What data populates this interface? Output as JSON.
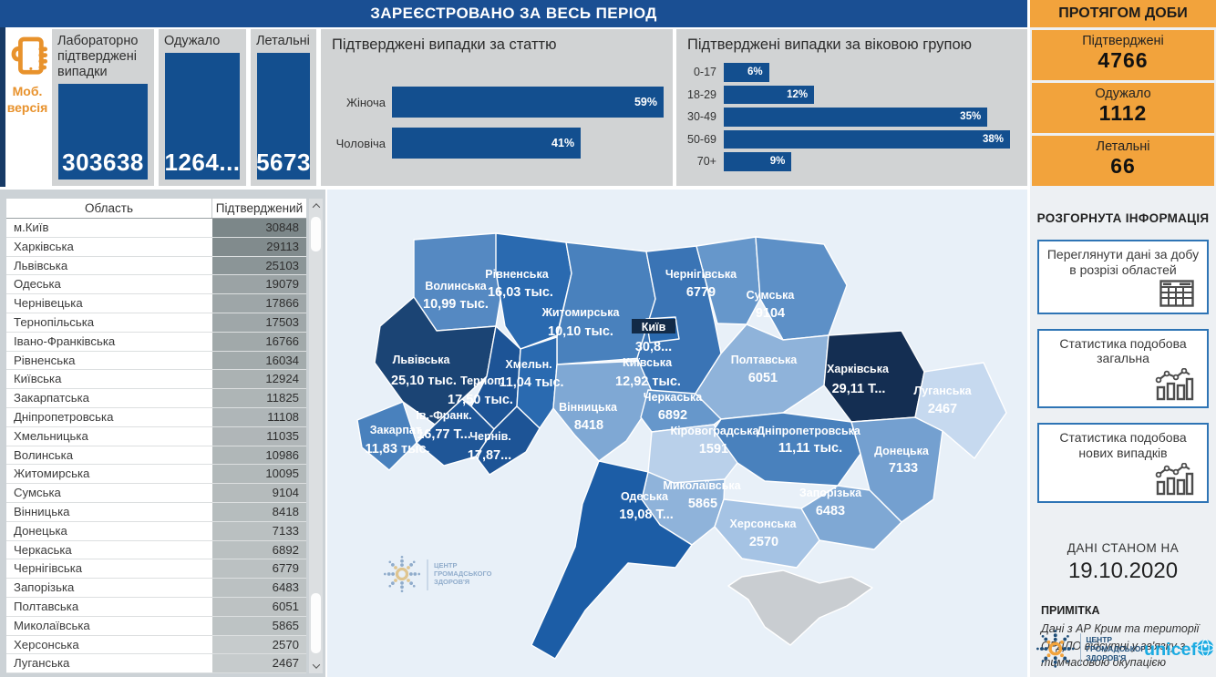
{
  "top": {
    "period_title": "ЗАРЕЄСТРОВАНО ЗА ВЕСЬ ПЕРІОД",
    "daily_title": "ПРОТЯГОМ ДОБИ"
  },
  "mobile_version_label": "Моб. версія",
  "summary_cards": [
    {
      "label": "Лабораторно підтверджені випадки",
      "value": "303638"
    },
    {
      "label": "Одужало",
      "value": "1264..."
    },
    {
      "label": "Летальні",
      "value": "5673"
    }
  ],
  "daily_cards": [
    {
      "label": "Підтверджені",
      "value": "4766"
    },
    {
      "label": "Одужало",
      "value": "1112"
    },
    {
      "label": "Летальні",
      "value": "66"
    }
  ],
  "chart_data": [
    {
      "type": "bar",
      "orientation": "horizontal",
      "title": "Підтверджені випадки за статтю",
      "categories": [
        "Жіноча",
        "Чоловіча"
      ],
      "values": [
        59,
        41
      ],
      "unit": "%",
      "xlim": [
        0,
        59
      ],
      "grid": false,
      "bar_color": "#134f8f"
    },
    {
      "type": "bar",
      "orientation": "horizontal",
      "title": "Підтверджені випадки за віковою групою",
      "categories": [
        "0-17",
        "18-29",
        "30-49",
        "50-69",
        "70+"
      ],
      "values": [
        6,
        12,
        35,
        38,
        9
      ],
      "unit": "%",
      "xlim": [
        0,
        38
      ],
      "grid": false,
      "bar_color": "#134f8f"
    }
  ],
  "table": {
    "headers": [
      "Область",
      "Підтверджений"
    ],
    "rows": [
      [
        "м.Київ",
        30848
      ],
      [
        "Харківська",
        29113
      ],
      [
        "Львівська",
        25103
      ],
      [
        "Одеська",
        19079
      ],
      [
        "Чернівецька",
        17866
      ],
      [
        "Тернопільська",
        17503
      ],
      [
        "Івано-Франківська",
        16766
      ],
      [
        "Рівненська",
        16034
      ],
      [
        "Київська",
        12924
      ],
      [
        "Закарпатська",
        11825
      ],
      [
        "Дніпропетровська",
        11108
      ],
      [
        "Хмельницька",
        11035
      ],
      [
        "Волинська",
        10986
      ],
      [
        "Житомирська",
        10095
      ],
      [
        "Сумська",
        9104
      ],
      [
        "Вінницька",
        8418
      ],
      [
        "Донецька",
        7133
      ],
      [
        "Черкаська",
        6892
      ],
      [
        "Чернігівська",
        6779
      ],
      [
        "Запорізька",
        6483
      ],
      [
        "Полтавська",
        6051
      ],
      [
        "Миколаївська",
        5865
      ],
      [
        "Херсонська",
        2570
      ],
      [
        "Луганська",
        2467
      ]
    ]
  },
  "map": {
    "background": "#e8f0f8",
    "crimea_color": "#c9cdd1",
    "kyiv_label_box_color": "#122a47",
    "regions": [
      {
        "id": "volyn",
        "name": "Волинська",
        "value": "10,99 тыс.",
        "color": "#5589c2"
      },
      {
        "id": "rivne",
        "name": "Рівненська",
        "value": "16,03 тыс.",
        "color": "#2a6ab0"
      },
      {
        "id": "zhytomyr",
        "name": "Житомирська",
        "value": "10,10 тыс.",
        "color": "#4981bd"
      },
      {
        "id": "lviv",
        "name": "Львівська",
        "value": "25,10 тыс.",
        "color": "#1b4474"
      },
      {
        "id": "ternopil",
        "name": "Терноп.",
        "value": "17,50 тыс.",
        "color": "#1d5496"
      },
      {
        "id": "khmelnytska",
        "name": "Хмельн.",
        "value": "11,04 тыс.",
        "color": "#2a6ab0"
      },
      {
        "id": "ivano_frankivska",
        "name": "Ів.-Франк.",
        "value": "16,77 Т...",
        "color": "#1f5697"
      },
      {
        "id": "zakarpatska",
        "name": "Закарпат.",
        "value": "11,83 тыс.",
        "color": "#4981bd"
      },
      {
        "id": "chernivetska",
        "name": "Чернів.",
        "value": "17,87...",
        "color": "#1d5496"
      },
      {
        "id": "vinnytska",
        "name": "Вінницька",
        "value": "8418",
        "color": "#7fa8d4"
      },
      {
        "id": "kyivska",
        "name": "Київська",
        "value": "12,92 тыс.",
        "color": "#3a74b5"
      },
      {
        "id": "kyiv_city",
        "name": "Київ",
        "value": "30,8...",
        "color": "#2a6ab0",
        "boxed": true
      },
      {
        "id": "chernihivska",
        "name": "Чернігівська",
        "value": "6779",
        "color": "#6697cb"
      },
      {
        "id": "sumska",
        "name": "Сумська",
        "value": "9104",
        "color": "#5d90c7"
      },
      {
        "id": "poltavska",
        "name": "Полтавська",
        "value": "6051",
        "color": "#8fb3da"
      },
      {
        "id": "kharkivska",
        "name": "Харківська",
        "value": "29,11 Т...",
        "color": "#142e52"
      },
      {
        "id": "cherkaska",
        "name": "Черкаська",
        "value": "6892",
        "color": "#6697cb"
      },
      {
        "id": "kirovohradska",
        "name": "Кіровоградська",
        "value": "1591",
        "color": "#b9d0ea"
      },
      {
        "id": "dnipropetrovska",
        "name": "Дніпропетровська",
        "value": "11,11 тыс.",
        "color": "#4981bd"
      },
      {
        "id": "donetska",
        "name": "Донецька",
        "value": "7133",
        "color": "#74a0d0"
      },
      {
        "id": "luhanska",
        "name": "Луганська",
        "value": "2467",
        "color": "#c6d9ef"
      },
      {
        "id": "zaporizka",
        "name": "Запорізька",
        "value": "6483",
        "color": "#7fa8d4"
      },
      {
        "id": "mykolaivska",
        "name": "Миколаївська",
        "value": "5865",
        "color": "#8fb3da"
      },
      {
        "id": "khersonska",
        "name": "Херсонська",
        "value": "2570",
        "color": "#a5c3e4"
      },
      {
        "id": "odeska",
        "name": "Одеська",
        "value": "19,08 Т...",
        "color": "#1c5da6"
      }
    ]
  },
  "sidebar": {
    "expanded_info_title": "РОЗГОРНУТА ІНФОРМАЦІЯ",
    "buttons": [
      {
        "label": "Переглянути дані за добу в розрізі областей",
        "icon": "table-icon"
      },
      {
        "label": "Статистика подобова загальна",
        "icon": "chart-icon"
      },
      {
        "label": "Статистика подобова нових випадків",
        "icon": "chart-icon"
      }
    ],
    "data_as_of_label": "ДАНІ СТАНОМ НА",
    "data_as_of_date": "19.10.2020",
    "note_title": "ПРИМІТКА",
    "note_text": "Дані з АР Крим та території ОРДЛО відсутні у зв'язку з тимчасовою окупацією",
    "logos": {
      "phc_lines": [
        "ЦЕНТР",
        "ГРОМАДСЬКОГО",
        "ЗДОРОВ'Я"
      ],
      "unicef": "unicef"
    }
  },
  "colors": {
    "header_blue": "#1a4f93",
    "bar_blue": "#134f8f",
    "panel_gray": "#d1d3d4",
    "accent_orange": "#f2a33c",
    "button_border_blue": "#2e74b5",
    "unicef_blue": "#1cabe2"
  }
}
